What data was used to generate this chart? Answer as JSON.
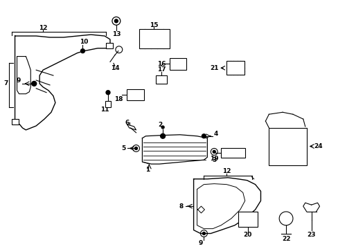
{
  "background_color": "#ffffff",
  "fig_width": 4.89,
  "fig_height": 3.6,
  "dpi": 100,
  "line_color": "#000000",
  "text_color": "#000000",
  "font_size": 6.5
}
